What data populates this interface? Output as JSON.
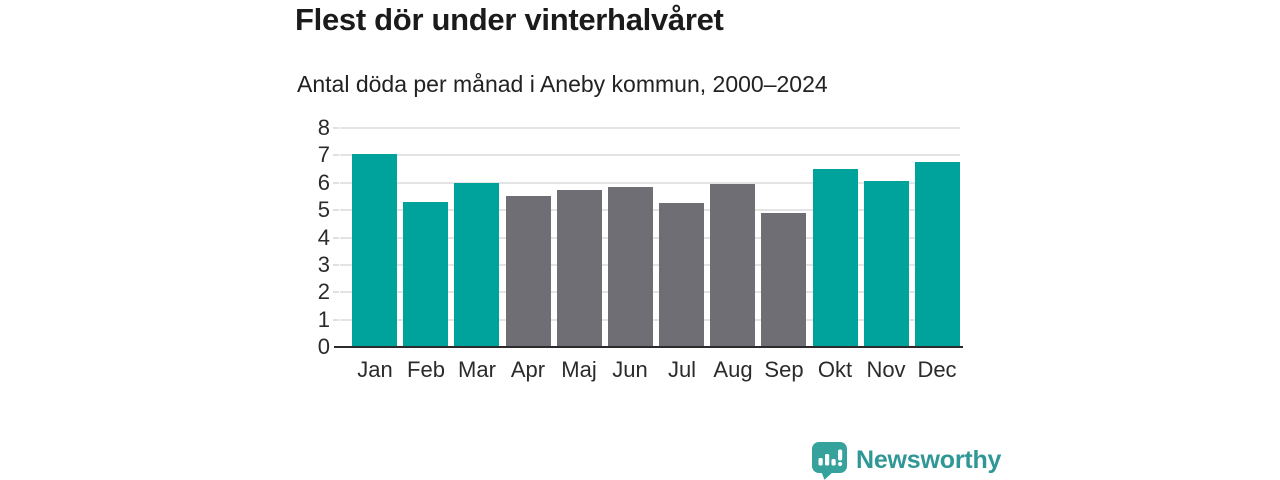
{
  "header": {
    "title": "Flest dör under vinterhalvåret",
    "subtitle": "Antal döda per månad i Aneby kommun, 2000–2024"
  },
  "chart_data": {
    "type": "bar",
    "title": "Flest dör under vinterhalvåret",
    "subtitle": "Antal döda per månad i Aneby kommun, 2000–2024",
    "categories": [
      "Jan",
      "Feb",
      "Mar",
      "Apr",
      "Maj",
      "Jun",
      "Jul",
      "Aug",
      "Sep",
      "Okt",
      "Nov",
      "Dec"
    ],
    "values": [
      7.05,
      5.3,
      6.0,
      5.5,
      5.75,
      5.85,
      5.25,
      5.95,
      4.9,
      6.5,
      6.05,
      6.75
    ],
    "highlighted": [
      true,
      true,
      true,
      false,
      false,
      false,
      false,
      false,
      false,
      true,
      true,
      true
    ],
    "xlabel": "",
    "ylabel": "",
    "ylim": [
      0,
      8
    ],
    "yticks": [
      0,
      1,
      2,
      3,
      4,
      5,
      6,
      7,
      8
    ],
    "grid": true,
    "legend": "none",
    "colors": {
      "highlight": "#00a39b",
      "base": "#6f6e74",
      "gridline": "#e4e4e4",
      "axis_line": "#2b2b2b",
      "axis_text": "#2b2b2b"
    }
  },
  "footer": {
    "brand": "Newsworthy",
    "logo_icon": "newsworthy-speech-bubble-bar-chart-icon",
    "brand_color": "#2f9795"
  }
}
